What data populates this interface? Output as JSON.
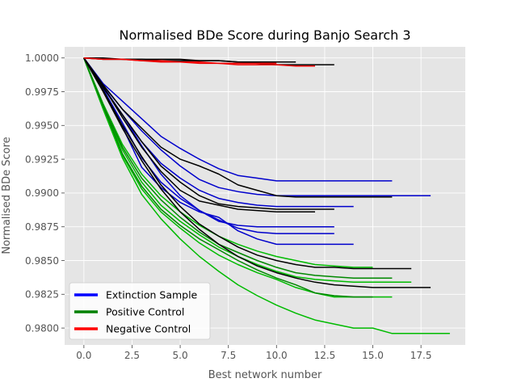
{
  "chart_data": {
    "type": "line",
    "title": "Normalised BDe Score during Banjo Search 3",
    "xlabel": "Best network number",
    "ylabel": "Normalised BDe Score",
    "xlim": [
      -1,
      19.8
    ],
    "ylim": [
      0.97875,
      1.00082
    ],
    "xticks": [
      0.0,
      2.5,
      5.0,
      7.5,
      10.0,
      12.5,
      15.0,
      17.5
    ],
    "xtick_labels": [
      "0.0",
      "2.5",
      "5.0",
      "7.5",
      "10.0",
      "12.5",
      "15.0",
      "17.5"
    ],
    "yticks": [
      0.98,
      0.9825,
      0.985,
      0.9875,
      0.99,
      0.9925,
      0.995,
      0.9975,
      1.0
    ],
    "ytick_labels": [
      "0.9800",
      "0.9825",
      "0.9850",
      "0.9875",
      "0.9900",
      "0.9925",
      "0.9950",
      "0.9975",
      "1.0000"
    ],
    "grid": true,
    "legend_position": "lower-left",
    "legend": [
      {
        "label": "Extinction Sample",
        "color": "#0000ff"
      },
      {
        "label": "Positive Control",
        "color": "#008000"
      },
      {
        "label": "Negative Control",
        "color": "#ff0000"
      }
    ],
    "colors": {
      "plot_background": "#e5e5e5",
      "grid": "#ffffff",
      "text": "#555555",
      "title": "#000000",
      "extinction": "#0000cc",
      "extinction_black": "#000000",
      "positive": "#00bb00",
      "positive_dark": "#008800",
      "negative": "#ee0000"
    },
    "series": [
      {
        "group": "extinction",
        "color": "#0000cc",
        "x": [
          0,
          1,
          2,
          3,
          4,
          5,
          6,
          7,
          8,
          9,
          10,
          11,
          12,
          13,
          14,
          15,
          16
        ],
        "y": [
          1.0,
          0.9981,
          0.9968,
          0.9955,
          0.9942,
          0.9933,
          0.9925,
          0.9918,
          0.9913,
          0.9911,
          0.9909,
          0.9909,
          0.9909,
          0.9909,
          0.9909,
          0.9909,
          0.9909
        ]
      },
      {
        "group": "extinction",
        "color": "#0000cc",
        "x": [
          0,
          1,
          2,
          3,
          4,
          5,
          6,
          7,
          8,
          9,
          10,
          11,
          12,
          13,
          14,
          15,
          16,
          17,
          18
        ],
        "y": [
          1.0,
          0.998,
          0.9962,
          0.9946,
          0.9932,
          0.992,
          0.991,
          0.9904,
          0.9901,
          0.9899,
          0.9898,
          0.9898,
          0.9898,
          0.9898,
          0.9898,
          0.9898,
          0.9898,
          0.9898,
          0.9898
        ]
      },
      {
        "group": "extinction",
        "color": "#0000cc",
        "x": [
          0,
          1,
          2,
          3,
          4,
          5,
          6,
          7,
          8,
          9,
          10,
          11,
          12,
          13,
          14
        ],
        "y": [
          1.0,
          0.9978,
          0.9958,
          0.9938,
          0.9922,
          0.9911,
          0.9902,
          0.9896,
          0.9893,
          0.9891,
          0.989,
          0.989,
          0.989,
          0.989,
          0.989
        ]
      },
      {
        "group": "extinction",
        "color": "#0000cc",
        "x": [
          0,
          1,
          2,
          3,
          4,
          5,
          6,
          7,
          8,
          9,
          10,
          11,
          12,
          13
        ],
        "y": [
          1.0,
          0.9979,
          0.9958,
          0.9935,
          0.9914,
          0.9898,
          0.9887,
          0.9879,
          0.9876,
          0.9875,
          0.9875,
          0.9875,
          0.9875,
          0.9875
        ]
      },
      {
        "group": "extinction",
        "color": "#0000cc",
        "x": [
          0,
          1,
          2,
          3,
          4,
          5,
          6,
          7,
          8,
          9,
          10,
          11,
          12,
          13
        ],
        "y": [
          1.0,
          0.9977,
          0.9952,
          0.9926,
          0.9908,
          0.9896,
          0.9887,
          0.988,
          0.9874,
          0.9871,
          0.987,
          0.987,
          0.987,
          0.987
        ]
      },
      {
        "group": "extinction",
        "color": "#0000cc",
        "x": [
          0,
          1,
          2,
          3,
          4,
          5,
          6,
          7,
          8,
          9,
          10,
          11,
          12,
          13,
          14
        ],
        "y": [
          1.0,
          0.9976,
          0.9949,
          0.9919,
          0.9904,
          0.9893,
          0.9886,
          0.9882,
          0.9872,
          0.9866,
          0.9862,
          0.9862,
          0.9862,
          0.9862,
          0.9862
        ]
      },
      {
        "group": "extinction",
        "color": "#000000",
        "x": [
          0,
          1,
          2,
          3,
          4,
          5,
          6,
          7,
          8,
          9,
          10,
          11,
          12,
          13,
          14,
          15,
          16
        ],
        "y": [
          1.0,
          0.998,
          0.9962,
          0.9948,
          0.9934,
          0.9925,
          0.992,
          0.9914,
          0.9906,
          0.9902,
          0.9898,
          0.9897,
          0.9897,
          0.9897,
          0.9897,
          0.9897,
          0.9897
        ]
      },
      {
        "group": "extinction",
        "color": "#000000",
        "x": [
          0,
          1,
          2,
          3,
          4,
          5,
          6,
          7,
          8,
          9,
          10,
          11,
          12,
          13
        ],
        "y": [
          1.0,
          0.9978,
          0.9958,
          0.9938,
          0.992,
          0.9908,
          0.9898,
          0.9892,
          0.989,
          0.9889,
          0.9888,
          0.9888,
          0.9888,
          0.9888
        ]
      },
      {
        "group": "extinction",
        "color": "#000000",
        "x": [
          0,
          1,
          2,
          3,
          4,
          5,
          6,
          7,
          8,
          9,
          10,
          11,
          12
        ],
        "y": [
          1.0,
          0.9979,
          0.9956,
          0.9934,
          0.9916,
          0.9902,
          0.9894,
          0.9891,
          0.9888,
          0.9887,
          0.9886,
          0.9886,
          0.9886
        ]
      },
      {
        "group": "extinction",
        "color": "#000000",
        "x": [
          0,
          1,
          2,
          3,
          4,
          5,
          6,
          7,
          8,
          9,
          10,
          11,
          12,
          13,
          14,
          15,
          16,
          17
        ],
        "y": [
          1.0,
          0.9976,
          0.995,
          0.9927,
          0.9906,
          0.989,
          0.9877,
          0.9868,
          0.986,
          0.9854,
          0.985,
          0.9847,
          0.9845,
          0.9845,
          0.9844,
          0.9844,
          0.9844,
          0.9844
        ]
      },
      {
        "group": "extinction",
        "color": "#000000",
        "x": [
          0,
          1,
          2,
          3,
          4,
          5,
          6,
          7,
          8,
          9,
          10,
          11,
          12,
          13,
          14,
          15,
          16,
          17,
          18
        ],
        "y": [
          1.0,
          0.9975,
          0.9948,
          0.9924,
          0.9903,
          0.9886,
          0.9873,
          0.9862,
          0.9853,
          0.9846,
          0.9841,
          0.9837,
          0.9834,
          0.9832,
          0.9831,
          0.983,
          0.983,
          0.983,
          0.983
        ]
      },
      {
        "group": "positive",
        "color": "#00bb00",
        "x": [
          0,
          1,
          2,
          3,
          4,
          5,
          6,
          7,
          8,
          9,
          10,
          11,
          12,
          13,
          14,
          15,
          16,
          17,
          18,
          19
        ],
        "y": [
          1.0,
          0.9962,
          0.9926,
          0.9899,
          0.9881,
          0.9866,
          0.9853,
          0.9842,
          0.9832,
          0.9824,
          0.9817,
          0.9811,
          0.9806,
          0.9803,
          0.98,
          0.98,
          0.9796,
          0.9796,
          0.9796,
          0.9796
        ]
      },
      {
        "group": "positive",
        "color": "#00bb00",
        "x": [
          0,
          1,
          2,
          3,
          4,
          5,
          6,
          7,
          8,
          9,
          10,
          11,
          12,
          13,
          14,
          15,
          16
        ],
        "y": [
          1.0,
          0.9963,
          0.9928,
          0.9903,
          0.9886,
          0.9874,
          0.9863,
          0.9854,
          0.9847,
          0.9841,
          0.9836,
          0.983,
          0.9826,
          0.9823,
          0.9823,
          0.9823,
          0.9823
        ]
      },
      {
        "group": "positive",
        "color": "#00bb00",
        "x": [
          0,
          1,
          2,
          3,
          4,
          5,
          6,
          7,
          8,
          9,
          10,
          11,
          12,
          13,
          14,
          15,
          16,
          17
        ],
        "y": [
          1.0,
          0.9964,
          0.9932,
          0.9908,
          0.9891,
          0.9879,
          0.9869,
          0.986,
          0.9853,
          0.9847,
          0.9842,
          0.9838,
          0.9836,
          0.9835,
          0.9834,
          0.9834,
          0.9834,
          0.9834
        ]
      },
      {
        "group": "positive",
        "color": "#00bb00",
        "x": [
          0,
          1,
          2,
          3,
          4,
          5,
          6,
          7,
          8,
          9,
          10,
          11,
          12,
          13,
          14,
          15
        ],
        "y": [
          1.0,
          0.9966,
          0.9936,
          0.9914,
          0.9898,
          0.9886,
          0.9876,
          0.9868,
          0.9862,
          0.9857,
          0.9853,
          0.985,
          0.9847,
          0.9846,
          0.9845,
          0.9845
        ]
      },
      {
        "group": "positive",
        "color": "#008800",
        "x": [
          0,
          1,
          2,
          3,
          4,
          5,
          6,
          7,
          8,
          9,
          10,
          11,
          12,
          13,
          14,
          15,
          16
        ],
        "y": [
          1.0,
          0.9965,
          0.9934,
          0.9911,
          0.9895,
          0.9882,
          0.9871,
          0.9862,
          0.9856,
          0.985,
          0.9845,
          0.9841,
          0.9839,
          0.9838,
          0.9837,
          0.9837,
          0.9837
        ]
      },
      {
        "group": "positive",
        "color": "#008800",
        "x": [
          0,
          1,
          2,
          3,
          4,
          5,
          6,
          7,
          8,
          9,
          10,
          11,
          12,
          13,
          14,
          15
        ],
        "y": [
          1.0,
          0.9964,
          0.9929,
          0.9905,
          0.9888,
          0.9876,
          0.9866,
          0.9858,
          0.985,
          0.9843,
          0.9837,
          0.9832,
          0.9826,
          0.9824,
          0.9823,
          0.9823
        ]
      },
      {
        "group": "negative",
        "color": "#000000",
        "x": [
          0,
          1,
          2,
          3,
          4,
          5,
          6,
          7,
          8,
          9,
          10,
          11,
          12,
          13
        ],
        "y": [
          1.0,
          1.0,
          0.9999,
          0.9999,
          0.9999,
          0.9999,
          0.9998,
          0.9998,
          0.9997,
          0.9996,
          0.9995,
          0.9995,
          0.9995,
          0.9995
        ]
      },
      {
        "group": "negative",
        "color": "#000000",
        "x": [
          0,
          1,
          2,
          3,
          4,
          5,
          6,
          7,
          8,
          9,
          10,
          11
        ],
        "y": [
          1.0,
          0.9999,
          0.9999,
          0.9999,
          0.9998,
          0.9998,
          0.9998,
          0.9998,
          0.9997,
          0.9997,
          0.9997,
          0.9997
        ]
      },
      {
        "group": "negative",
        "color": "#ee0000",
        "x": [
          0,
          1,
          2,
          3,
          4,
          5,
          6,
          7,
          8,
          9,
          10,
          11,
          12
        ],
        "y": [
          1.0,
          0.9999,
          0.9999,
          0.9998,
          0.9998,
          0.9997,
          0.9997,
          0.9996,
          0.9995,
          0.9995,
          0.9995,
          0.9994,
          0.9994
        ]
      },
      {
        "group": "negative",
        "color": "#ee0000",
        "x": [
          0,
          1,
          2,
          3,
          4,
          5,
          6,
          7,
          8,
          9,
          10
        ],
        "y": [
          1.0,
          0.9999,
          0.9999,
          0.9998,
          0.9997,
          0.9997,
          0.9996,
          0.9996,
          0.9996,
          0.9996,
          0.9996
        ]
      }
    ]
  }
}
